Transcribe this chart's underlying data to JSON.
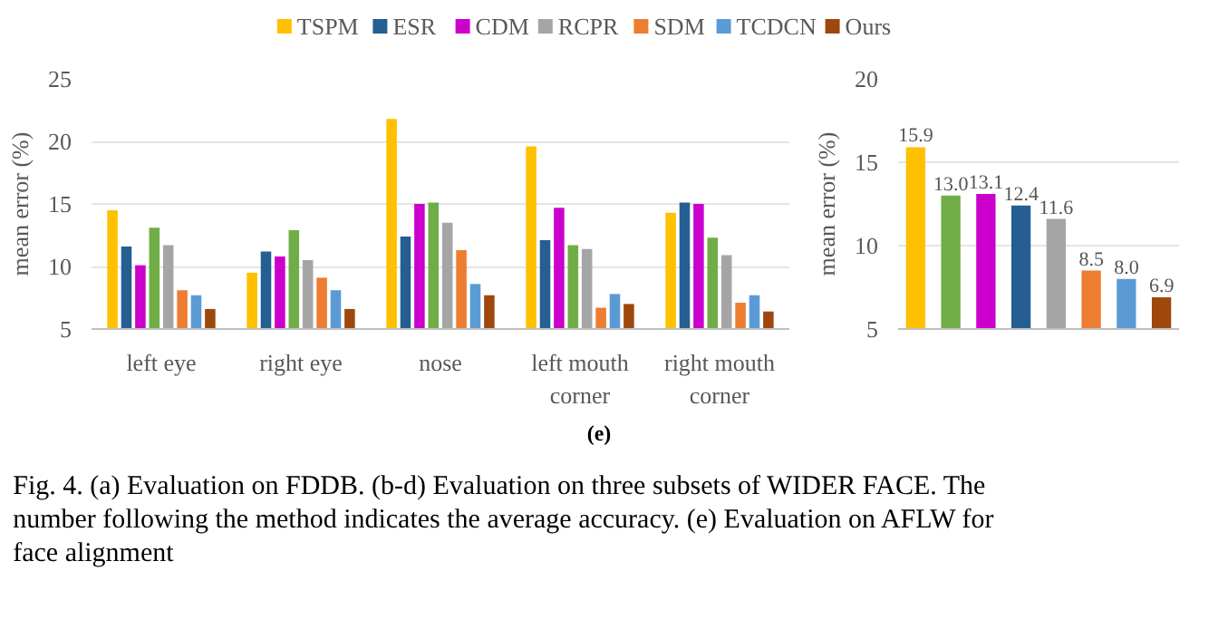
{
  "chart_data": [
    {
      "type": "bar",
      "categories": [
        "left eye",
        "right eye",
        "nose",
        "left mouth corner",
        "right mouth corner"
      ],
      "ylabel": "mean error (%)",
      "ylim": [
        5,
        25
      ],
      "yticks": [
        5,
        10,
        15,
        20,
        25
      ],
      "grid": "y",
      "legend": "top",
      "annotations": [
        "(e)",
        "Fig. 4.  (a) Evaluation on FDDB. (b-d) Evaluation on three subsets of WIDER FACE. The number following the method indicates the average accuracy. (e) Evaluation on AFLW for face alignment"
      ],
      "series": [
        {
          "name": "TSPM",
          "color": "#ffc000",
          "values": [
            14.5,
            9.5,
            21.8,
            19.6,
            14.3
          ]
        },
        {
          "name": "ESR",
          "color": "#255e91",
          "values": [
            11.6,
            11.2,
            12.4,
            12.1,
            15.1
          ]
        },
        {
          "name": "CDM",
          "color": "#cc00cc",
          "values": [
            10.1,
            10.8,
            15.0,
            14.7,
            15.0
          ]
        },
        {
          "color": "#70ad47",
          "values": [
            13.1,
            12.9,
            15.1,
            11.7,
            12.3
          ]
        },
        {
          "name": "RCPR",
          "color": "#a5a5a5",
          "values": [
            11.7,
            10.5,
            13.5,
            11.4,
            10.9
          ]
        },
        {
          "name": "SDM",
          "color": "#ed7d31",
          "values": [
            8.1,
            9.1,
            11.3,
            6.7,
            7.1
          ]
        },
        {
          "name": "TCDCN",
          "color": "#5b9bd5",
          "values": [
            7.7,
            8.1,
            8.6,
            7.8,
            7.7
          ]
        },
        {
          "name": "Ours",
          "color": "#9e480e",
          "values": [
            6.6,
            6.6,
            7.7,
            7.0,
            6.4
          ]
        }
      ]
    },
    {
      "type": "bar",
      "categories": [
        null,
        null,
        null,
        null,
        null,
        null,
        null,
        null
      ],
      "ylabel": "mean error (%)",
      "ylim": [
        5,
        20
      ],
      "yticks": [
        5,
        10,
        15,
        20
      ],
      "grid": "y",
      "tick_labels": "y",
      "value_labels": [
        "15.9",
        "13.0",
        "13.1",
        "12.4",
        "11.6",
        "8.5",
        "8.0",
        "6.9"
      ],
      "values": [
        15.9,
        13.0,
        13.1,
        12.4,
        11.6,
        8.5,
        8.0,
        6.9
      ],
      "colors": [
        "#ffc000",
        "#70ad47",
        "#cc00cc",
        "#255e91",
        "#a5a5a5",
        "#ed7d31",
        "#5b9bd5",
        "#9e480e"
      ]
    }
  ]
}
